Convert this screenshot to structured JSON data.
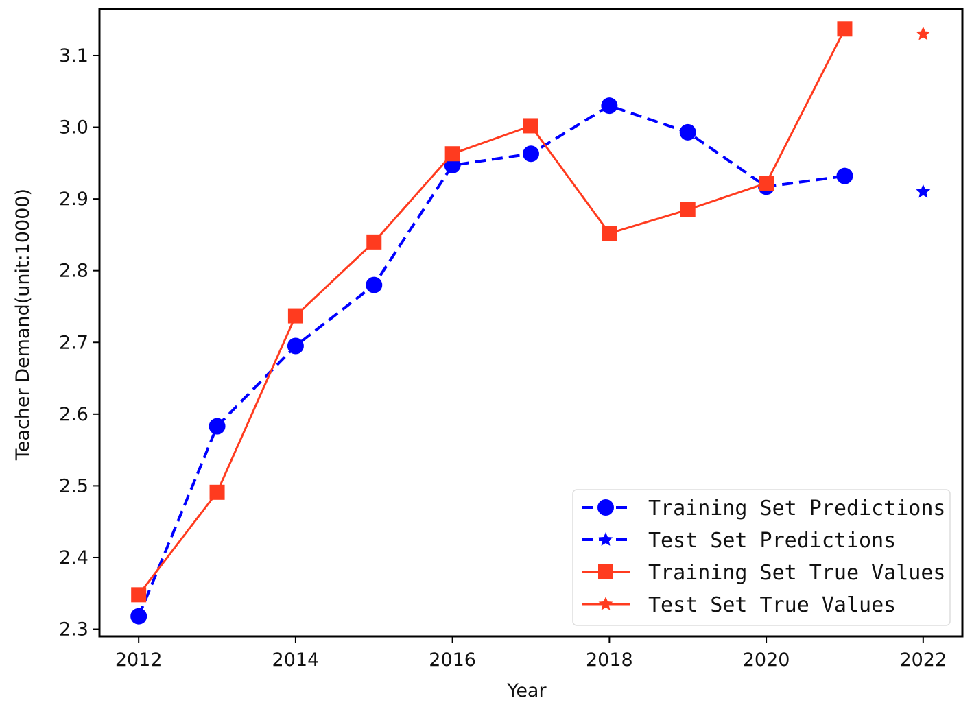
{
  "chart_data": {
    "type": "line",
    "title": "",
    "xlabel": "Year",
    "ylabel": "Teacher Demand(unit:10000)",
    "xlim": [
      2011.5,
      2022.5
    ],
    "ylim": [
      2.29,
      3.165
    ],
    "x_ticks": [
      "2012",
      "2014",
      "2016",
      "2018",
      "2020",
      "2022"
    ],
    "y_ticks": [
      "2.3",
      "2.4",
      "2.5",
      "2.6",
      "2.7",
      "2.8",
      "2.9",
      "3.0",
      "3.1"
    ],
    "grid": false,
    "legend_position": "lower right",
    "series": [
      {
        "name": "Training Set Predictions",
        "color": "#0000ff",
        "line_style": "dashed",
        "marker": "circle",
        "points": [
          [
            2012,
            2.318
          ],
          [
            2013,
            2.583
          ],
          [
            2014,
            2.695
          ],
          [
            2015,
            2.78
          ],
          [
            2016,
            2.947
          ],
          [
            2017,
            2.963
          ],
          [
            2018,
            3.03
          ],
          [
            2019,
            2.993
          ],
          [
            2020,
            2.917
          ],
          [
            2021,
            2.932
          ]
        ]
      },
      {
        "name": "Test Set Predictions",
        "color": "#0000ff",
        "line_style": "dashed",
        "marker": "star",
        "points": [
          [
            2022,
            2.91
          ]
        ]
      },
      {
        "name": "Training Set True Values",
        "color": "#ff3b1f",
        "line_style": "solid",
        "marker": "square",
        "points": [
          [
            2012,
            2.348
          ],
          [
            2013,
            2.491
          ],
          [
            2014,
            2.737
          ],
          [
            2015,
            2.84
          ],
          [
            2016,
            2.963
          ],
          [
            2017,
            3.002
          ],
          [
            2018,
            2.852
          ],
          [
            2019,
            2.885
          ],
          [
            2020,
            2.922
          ],
          [
            2021,
            3.137
          ]
        ]
      },
      {
        "name": "Test Set True Values",
        "color": "#ff3b1f",
        "line_style": "solid",
        "marker": "star",
        "points": [
          [
            2022,
            3.13
          ]
        ]
      }
    ]
  }
}
